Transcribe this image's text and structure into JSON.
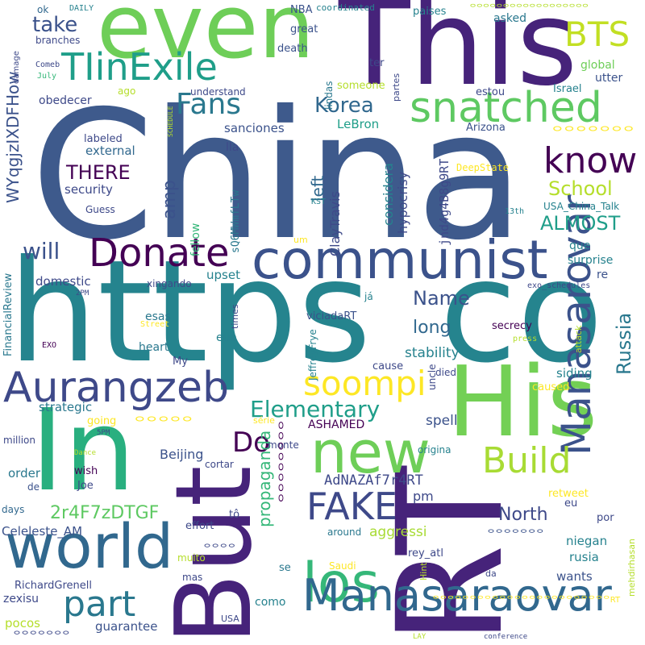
{
  "palette": {
    "dark_purple": "#440154",
    "indigo": "#482878",
    "blue": "#3e4989",
    "steel_blue": "#31688e",
    "teal_blue": "#26828e",
    "teal": "#1f9e89",
    "green": "#35b779",
    "light_green": "#6ece58",
    "lime": "#b5de2b",
    "yellow": "#fde725"
  },
  "words": [
    "China",
    "https",
    "co",
    "This",
    "even",
    "RT",
    "His",
    "In",
    "But",
    "world",
    "communist",
    "new",
    "los",
    "Manasarovar",
    "Manasaraovar",
    "Aurangzeb",
    "snatched",
    "TIinExile",
    "Donate",
    "FAKE",
    "soompi",
    "Build",
    "BTS",
    "Fans",
    "know",
    "part",
    "Korea",
    "Elementary",
    "Name",
    "Russia",
    "School",
    "ALMOST",
    "THERE",
    "take",
    "Do",
    "will",
    "amp",
    "long",
    "North",
    "propaganda",
    "left",
    "2r4F7zDTGF",
    "WYqgjzIXDFHow",
    "stability",
    "spell",
    "aggressi",
    "AdNAZAf7r4RT",
    "jnd4g4B8g9RT",
    "considera",
    "hypocrisy",
    "ClayTravis",
    "pm",
    "sanciones",
    "LeBron",
    "Celeleste_AM",
    "Beijing",
    "security",
    "external",
    "strategic",
    "domestic",
    "order",
    "wants",
    "rusia",
    "niegan",
    "siding",
    "upset",
    "surprise",
    "que",
    "re",
    "esas",
    "eua",
    "heart",
    "guarantee",
    "pocos",
    "zexisu",
    "RichardGrenell",
    "ASHAMED",
    "como",
    "FinancialReview",
    "sQ6MWmfLTw",
    "fellow",
    "asked",
    "global",
    "utter",
    "obedecer",
    "someone",
    "paises",
    "death",
    "great",
    "NBA",
    "ok",
    "coordinated",
    "DAILY",
    "branches",
    "damage",
    "Comeb",
    "July",
    "ago",
    "understand",
    "lla",
    "SCHEDULE",
    "DeepState",
    "Israel",
    "Arizona",
    "estou",
    "ter",
    "partes",
    "lindas",
    "KST",
    "13th",
    "USA_China_Talk",
    "exo_schedules",
    "um",
    "viciadaRT",
    "já",
    "secrecy",
    "attack",
    "press",
    "Street",
    "times",
    "JeffreyFrye",
    "cause",
    "died",
    "uncle",
    "caused",
    "xingando",
    "2PM",
    "EXO",
    "My",
    "going",
    "5PM",
    "million",
    "Dance",
    "wish",
    "Joe",
    "de",
    "days",
    "série",
    "monte",
    "cortar",
    "origina",
    "retweet",
    "eu",
    "por",
    "effort",
    "tô",
    "muito",
    "mas",
    "Saudi",
    "around",
    "rey_atl",
    "Hint",
    "da",
    "se",
    "USA",
    "LAY",
    "conference",
    "mehdirhasan",
    "Guess",
    "labeled"
  ],
  "cjk_words": [
    "ᄋᄋᄋᄋᄋᄋᄋᄋᄋᄋᄋᄋᄋᄋᄋᄋᄋᄋ",
    "ᄋᄋᄋᄋᄋᄋᄋ",
    "ᄋᄋᄋᄋᄋ",
    "ᄋᄋᄋᄋᄋᄋᄋᄋ",
    "ᄋᄋᄋᄋᄋᄋᄋᄋᄋᄋᄋᄋᄋᄋᄋᄋᄋᄋᄋᄋᄋᄋᄋᄋRT",
    "ᄋᄋᄋᄋᄋᄋᄋ",
    "ᄋᄋᄋᄋ",
    "ᄋᄋᄋᄋᄋᄋᄋ"
  ]
}
